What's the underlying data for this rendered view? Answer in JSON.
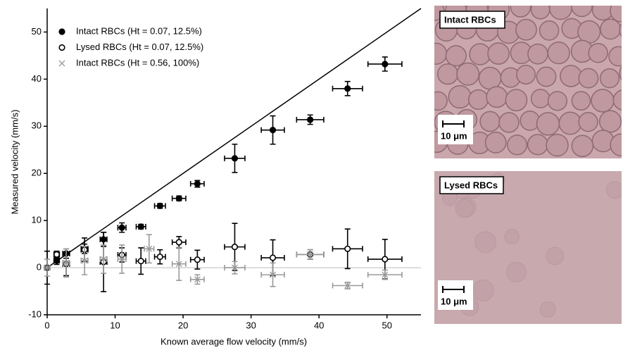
{
  "chart_data": {
    "type": "scatter",
    "x_label": "Known average flow velocity (mm/s)",
    "y_label": "Measured velocity (mm/s)",
    "xlim": [
      0,
      55
    ],
    "ylim": [
      -10,
      55
    ],
    "xticks": [
      0,
      10,
      20,
      30,
      40,
      50
    ],
    "yticks": [
      -10,
      0,
      10,
      20,
      30,
      40,
      50
    ],
    "series": [
      {
        "name": "Intact RBCs (Ht = 0.07, 12.5%)",
        "color": "#000000",
        "marker": "filled-circle",
        "x": [
          0,
          1.4,
          2.8,
          5.5,
          8.3,
          11,
          13.8,
          16.6,
          19.4,
          22.1,
          27.6,
          33.2,
          38.7,
          44.2,
          49.7
        ],
        "values": [
          0,
          1.5,
          3,
          4,
          6,
          8.5,
          8.7,
          13.1,
          14.7,
          17.8,
          23.2,
          29.2,
          31.4,
          38,
          43.2
        ],
        "xerr": [
          0.4,
          0.4,
          0.5,
          0.5,
          0.5,
          0.6,
          0.7,
          0.8,
          1,
          1,
          1.5,
          1.7,
          2,
          2.2,
          2.5
        ],
        "yerr": [
          3.5,
          0.8,
          1,
          1,
          1.5,
          1,
          0.5,
          0.5,
          0.5,
          0.7,
          3,
          3,
          1,
          1.5,
          1.5
        ]
      },
      {
        "name": "Lysed RBCs (Ht = 0.07, 12.5%)",
        "color": "#000000",
        "marker": "open-circle",
        "x": [
          1.4,
          2.8,
          5.5,
          8.3,
          11,
          13.8,
          16.6,
          19.4,
          22.1,
          27.6,
          33.2,
          38.7,
          44.2,
          49.7
        ],
        "values": [
          2.8,
          0.8,
          3.8,
          1.2,
          2.7,
          1.4,
          2.3,
          5.4,
          1.7,
          4.4,
          2.1,
          2.8,
          4,
          1.8
        ],
        "xerr": [
          0.4,
          0.5,
          0.5,
          0.5,
          0.6,
          0.7,
          0.8,
          1,
          1,
          1.5,
          1.7,
          2,
          2.2,
          2.5
        ],
        "yerr": [
          0.7,
          2.5,
          2.5,
          6.3,
          1.5,
          2.8,
          1.5,
          1.2,
          2,
          5,
          3.8,
          1,
          4.2,
          4.2
        ]
      },
      {
        "name": "Intact RBCs (Ht = 0.56, 100%)",
        "color": "#999999",
        "marker": "x",
        "x": [
          0,
          2.8,
          5.5,
          8.3,
          11,
          15,
          19.4,
          22.1,
          27.6,
          33.2,
          38.7,
          44.2,
          49.7
        ],
        "values": [
          0,
          1,
          1.5,
          1.8,
          1.8,
          4,
          0.8,
          -2.5,
          0,
          -1.5,
          2.8,
          -3.8,
          -1.5
        ],
        "xerr": [
          0.4,
          0.5,
          0.5,
          0.5,
          0.6,
          0.7,
          1,
          1,
          1.5,
          1.7,
          2,
          2.2,
          2.5
        ],
        "yerr": [
          1.8,
          3,
          3,
          3,
          3,
          3,
          3.5,
          1,
          1.3,
          2.5,
          1,
          0.7,
          1
        ]
      }
    ]
  },
  "panels": [
    {
      "label": "Intact RBCs",
      "scale": "10 μm"
    },
    {
      "label": "Lysed RBCs",
      "scale": "10 μm"
    }
  ]
}
